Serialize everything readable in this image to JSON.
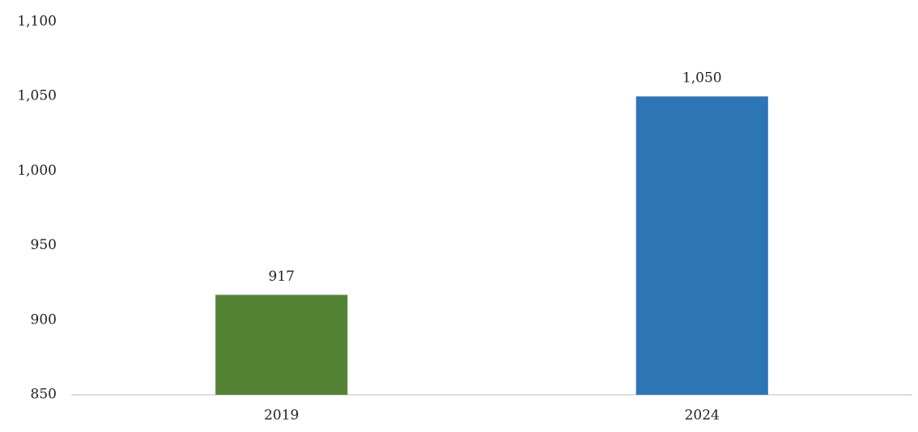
{
  "chart_data": {
    "type": "bar",
    "categories": [
      "2019",
      "2024"
    ],
    "values": [
      917,
      1050
    ],
    "value_labels": [
      "917",
      "1,050"
    ],
    "colors": [
      "#548235",
      "#2e75b6"
    ],
    "ylim": [
      850,
      1100
    ],
    "yticks": [
      850,
      900,
      950,
      {
        "value": 1000,
        "label": "1,000"
      },
      {
        "value": 1050,
        "label": "1,050"
      },
      {
        "value": 1100,
        "label": "1,100"
      }
    ],
    "grid": false
  }
}
